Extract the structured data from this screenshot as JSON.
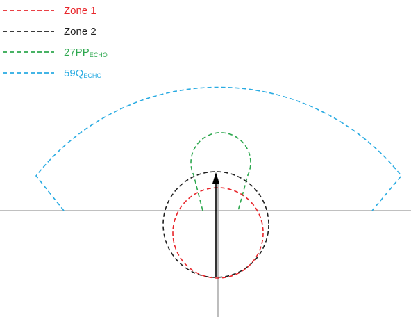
{
  "colors": {
    "zone1": "#e8262b",
    "zone2": "#1f1f1f",
    "pp": "#2ea84f",
    "q": "#29abe2",
    "axis": "#9a9a9a",
    "arrow": "#000000"
  },
  "legend": [
    {
      "id": "zone-1",
      "label": "Zone 1",
      "sub": "",
      "color_key": "zone1"
    },
    {
      "id": "zone-2",
      "label": "Zone 2",
      "sub": "",
      "color_key": "zone2"
    },
    {
      "id": "27pp-echo",
      "label": "27PP",
      "sub": "ECHO",
      "color_key": "pp"
    },
    {
      "id": "59q-echo",
      "label": "59Q",
      "sub": "ECHO",
      "color_key": "q"
    }
  ]
}
